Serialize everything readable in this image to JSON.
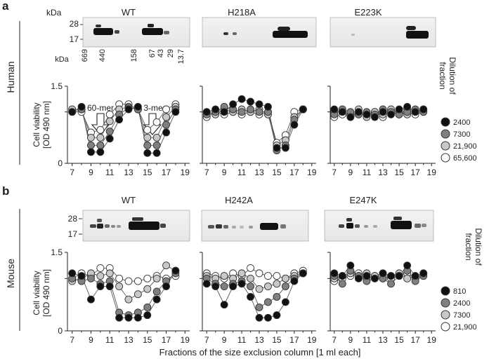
{
  "panel_a": {
    "letter": "a",
    "species": "Human",
    "kda_label": "kDa",
    "blot_markers": [
      "28",
      "17"
    ],
    "columns": [
      "WT",
      "H218A",
      "E223K"
    ],
    "calibration_kda_label": "kDa",
    "calibration": [
      "669",
      "440",
      "158",
      "67",
      "43",
      "29",
      "13.7"
    ],
    "annotations": [
      "60-mer",
      "3-mer"
    ],
    "ylabel_line1": "Cell viability",
    "ylabel_line2": "[OD 490 nm]",
    "legend_title_line1": "Dilution of",
    "legend_title_line2": "fraction",
    "legend": [
      "2400",
      "7300",
      "21,900",
      "65,600"
    ]
  },
  "panel_b": {
    "letter": "b",
    "species": "Mouse",
    "kda_label": "",
    "blot_markers": [
      "28",
      "17"
    ],
    "columns": [
      "WT",
      "H242A",
      "E247K"
    ],
    "ylabel_line1": "Cell viability",
    "ylabel_line2": "[OD 490 nm]",
    "legend_title_line1": "Dilution of",
    "legend_title_line2": "fraction",
    "legend": [
      "810",
      "2400",
      "7300",
      "21,900"
    ]
  },
  "series_colors": [
    "#111111",
    "#808080",
    "#c8c8c8",
    "#ffffff"
  ],
  "shared_xlabel": "Fractions of the size exclusion column [1 ml each]",
  "chart_data": [
    {
      "type": "line",
      "panel": "a",
      "title": "WT",
      "xlabel": "",
      "ylabel": "Cell viability [OD 490 nm]",
      "xlim": [
        6.5,
        19.5
      ],
      "ylim": [
        0,
        1.5
      ],
      "xticks": [
        "7",
        "9",
        "11",
        "13",
        "15",
        "17",
        "19"
      ],
      "yticks": [
        "0",
        "1.5"
      ],
      "x": [
        7,
        8,
        9,
        10,
        11,
        12,
        13,
        14,
        15,
        16,
        17,
        18
      ],
      "series": [
        {
          "name": "2400",
          "values": [
            1.0,
            1.1,
            0.22,
            0.22,
            0.48,
            0.85,
            1.05,
            1.1,
            0.2,
            0.2,
            0.6,
            1.0
          ]
        },
        {
          "name": "7300",
          "values": [
            1.0,
            1.05,
            0.35,
            0.35,
            0.62,
            0.95,
            1.08,
            1.05,
            0.35,
            0.35,
            0.75,
            1.05
          ]
        },
        {
          "name": "21,900",
          "values": [
            1.05,
            1.05,
            0.5,
            0.5,
            0.82,
            1.05,
            1.1,
            1.05,
            0.5,
            0.5,
            0.9,
            1.1
          ]
        },
        {
          "name": "65,600",
          "values": [
            1.0,
            1.0,
            0.6,
            0.65,
            0.95,
            1.15,
            1.15,
            1.05,
            0.65,
            0.8,
            1.05,
            1.15
          ]
        }
      ]
    },
    {
      "type": "line",
      "panel": "a",
      "title": "H218A",
      "xlabel": "",
      "ylabel": "",
      "xlim": [
        6.5,
        19.5
      ],
      "ylim": [
        0,
        1.5
      ],
      "xticks": [
        "7",
        "9",
        "11",
        "13",
        "15",
        "17",
        "19"
      ],
      "yticks": [],
      "x": [
        7,
        8,
        9,
        10,
        11,
        12,
        13,
        14,
        15,
        16,
        17,
        18
      ],
      "series": [
        {
          "name": "2400",
          "values": [
            1.0,
            1.05,
            1.0,
            1.15,
            1.25,
            1.2,
            1.15,
            1.1,
            0.3,
            0.3,
            0.75,
            1.05
          ]
        },
        {
          "name": "7300",
          "values": [
            0.95,
            1.0,
            1.1,
            1.05,
            1.0,
            1.05,
            1.0,
            1.0,
            0.25,
            0.35,
            0.85,
            1.05
          ]
        },
        {
          "name": "21,900",
          "values": [
            1.0,
            0.95,
            1.05,
            1.0,
            1.05,
            1.0,
            1.05,
            0.95,
            0.35,
            0.45,
            0.9,
            1.05
          ]
        },
        {
          "name": "65,600",
          "values": [
            0.9,
            1.0,
            0.95,
            1.0,
            0.95,
            1.0,
            0.95,
            1.0,
            0.4,
            0.55,
            1.0,
            1.05
          ]
        }
      ]
    },
    {
      "type": "line",
      "panel": "a",
      "title": "E223K",
      "xlabel": "",
      "ylabel": "",
      "xlim": [
        6.5,
        19.5
      ],
      "ylim": [
        0,
        1.5
      ],
      "xticks": [
        "7",
        "9",
        "11",
        "13",
        "15",
        "17",
        "19"
      ],
      "yticks": [],
      "x": [
        7,
        8,
        9,
        10,
        11,
        12,
        13,
        14,
        15,
        16,
        17,
        18
      ],
      "series": [
        {
          "name": "2400",
          "values": [
            1.05,
            1.0,
            0.9,
            1.0,
            0.95,
            0.9,
            1.0,
            0.95,
            1.05,
            1.1,
            1.0,
            1.05
          ]
        },
        {
          "name": "7300",
          "values": [
            0.95,
            1.05,
            1.0,
            0.95,
            1.0,
            0.95,
            1.05,
            1.0,
            0.95,
            1.0,
            1.05,
            1.0
          ]
        },
        {
          "name": "21,900",
          "values": [
            1.0,
            1.0,
            0.95,
            1.05,
            0.9,
            1.0,
            0.95,
            1.05,
            1.0,
            0.95,
            1.0,
            1.05
          ]
        },
        {
          "name": "65,600",
          "values": [
            0.9,
            0.95,
            0.9,
            0.95,
            0.95,
            1.0,
            0.9,
            1.0,
            0.95,
            1.05,
            0.95,
            1.0
          ]
        }
      ]
    },
    {
      "type": "line",
      "panel": "b",
      "title": "WT",
      "xlabel": "",
      "ylabel": "Cell viability [OD 490 nm]",
      "xlim": [
        6.5,
        19.5
      ],
      "ylim": [
        0,
        1.5
      ],
      "xticks": [
        "7",
        "9",
        "11",
        "13",
        "15",
        "17",
        "19"
      ],
      "yticks": [
        "0",
        "1.5"
      ],
      "x": [
        7,
        8,
        9,
        10,
        11,
        12,
        13,
        14,
        15,
        16,
        17,
        18
      ],
      "series": [
        {
          "name": "810",
          "values": [
            1.1,
            1.05,
            0.6,
            0.85,
            0.85,
            0.25,
            0.25,
            0.25,
            0.3,
            0.6,
            0.85,
            1.15
          ]
        },
        {
          "name": "2400",
          "values": [
            1.0,
            0.95,
            1.0,
            0.9,
            0.95,
            0.35,
            0.3,
            0.35,
            0.45,
            0.75,
            0.95,
            1.1
          ]
        },
        {
          "name": "7300",
          "values": [
            0.95,
            1.0,
            1.1,
            1.05,
            1.1,
            0.85,
            0.6,
            0.7,
            0.8,
            1.0,
            1.25,
            1.15
          ]
        },
        {
          "name": "21,900",
          "values": [
            1.0,
            1.1,
            1.05,
            1.2,
            1.2,
            1.0,
            0.95,
            0.95,
            1.0,
            1.05,
            1.0,
            1.05
          ]
        }
      ]
    },
    {
      "type": "line",
      "panel": "b",
      "title": "H242A",
      "xlabel": "",
      "ylabel": "",
      "xlim": [
        6.5,
        19.5
      ],
      "ylim": [
        0,
        1.5
      ],
      "xticks": [
        "7",
        "9",
        "11",
        "13",
        "15",
        "17",
        "19"
      ],
      "yticks": [],
      "x": [
        7,
        8,
        9,
        10,
        11,
        12,
        13,
        14,
        15,
        16,
        17,
        18
      ],
      "series": [
        {
          "name": "810",
          "values": [
            0.9,
            0.85,
            0.5,
            0.85,
            0.9,
            0.65,
            0.25,
            0.25,
            0.3,
            0.55,
            0.95,
            1.1
          ]
        },
        {
          "name": "2400",
          "values": [
            1.0,
            0.9,
            0.85,
            0.9,
            0.95,
            0.85,
            0.45,
            0.55,
            0.65,
            0.85,
            1.0,
            1.1
          ]
        },
        {
          "name": "7300",
          "values": [
            1.05,
            1.0,
            1.05,
            1.0,
            1.1,
            1.0,
            0.8,
            0.85,
            0.9,
            1.0,
            1.05,
            1.1
          ]
        },
        {
          "name": "21,900",
          "values": [
            1.1,
            1.05,
            1.0,
            1.1,
            1.05,
            1.2,
            1.1,
            1.05,
            1.05,
            1.0,
            1.1,
            1.15
          ]
        }
      ]
    },
    {
      "type": "line",
      "panel": "b",
      "title": "E247K",
      "xlabel": "",
      "ylabel": "",
      "xlim": [
        6.5,
        19.5
      ],
      "ylim": [
        0,
        1.5
      ],
      "xticks": [
        "7",
        "9",
        "11",
        "13",
        "15",
        "17",
        "19"
      ],
      "yticks": [],
      "x": [
        7,
        8,
        9,
        10,
        11,
        12,
        13,
        14,
        15,
        16,
        17,
        18
      ],
      "series": [
        {
          "name": "810",
          "values": [
            1.1,
            1.05,
            1.25,
            1.0,
            1.05,
            1.0,
            1.1,
            1.05,
            1.05,
            1.25,
            1.05,
            1.1
          ]
        },
        {
          "name": "2400",
          "values": [
            1.05,
            0.9,
            1.15,
            1.05,
            0.95,
            1.0,
            1.0,
            0.9,
            1.05,
            1.15,
            0.95,
            1.05
          ]
        },
        {
          "name": "7300",
          "values": [
            1.0,
            1.05,
            1.1,
            1.05,
            1.1,
            1.05,
            1.0,
            1.05,
            1.1,
            1.0,
            1.05,
            1.1
          ]
        },
        {
          "name": "21,900",
          "values": [
            0.95,
            1.0,
            1.05,
            1.1,
            1.0,
            1.05,
            1.1,
            1.0,
            1.05,
            1.1,
            1.0,
            1.05
          ]
        }
      ]
    }
  ]
}
